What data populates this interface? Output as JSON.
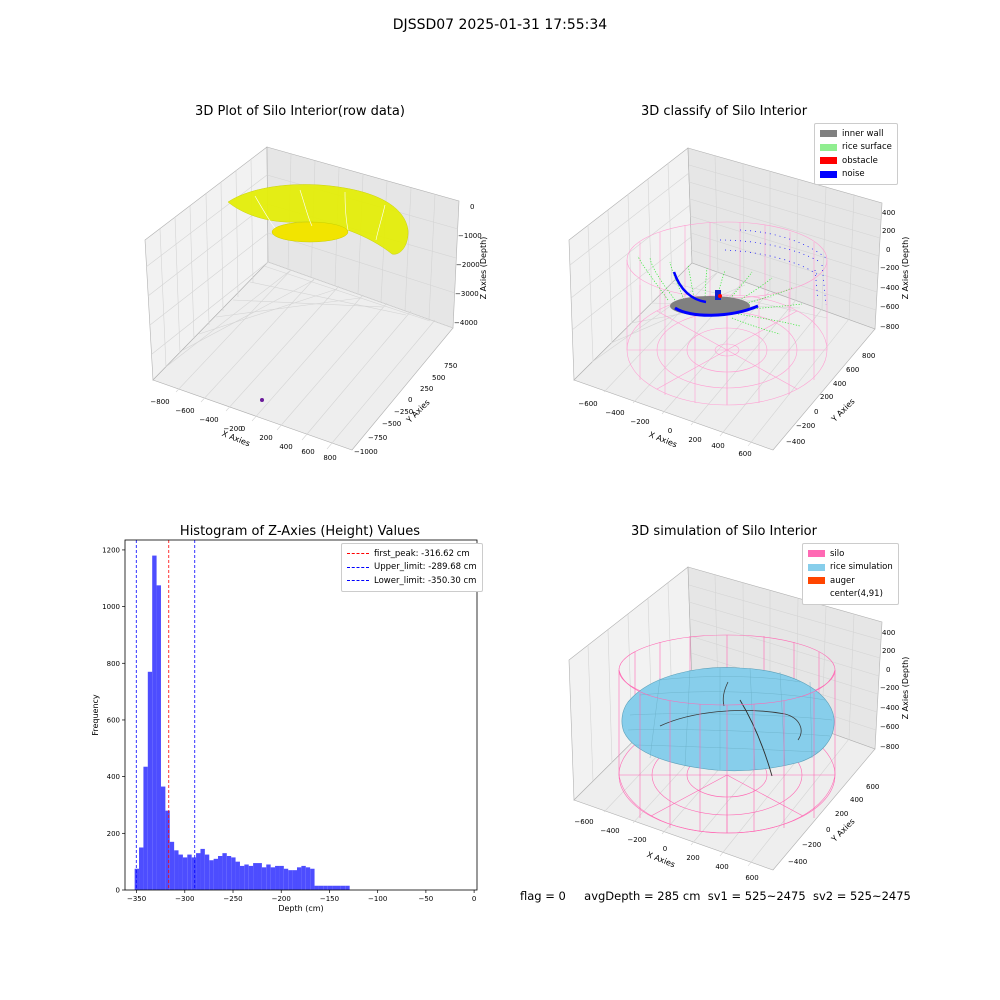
{
  "figure": {
    "suptitle": "DJSSD07 2025-01-31 17:55:34"
  },
  "footer": {
    "flag": "flag = 0",
    "avg_depth": "avgDepth = 285 cm",
    "sv1": "sv1 = 525~2475",
    "sv2": "sv2 = 525~2475"
  },
  "colors": {
    "raw_points": "#e4ee0a",
    "inner_wall": "#808080",
    "rice_surface": "#90ee90",
    "obstacle": "#ff0000",
    "noise": "#0000ff",
    "silo": "#ff69b4",
    "rice_simulation": "#87ceeb",
    "auger": "#ff4500",
    "hist_bar": "#4d4dff",
    "peak_line": "#ff0000",
    "limit_line": "#0000ff"
  },
  "chart_data": [
    {
      "type": "scatter",
      "projection": "3d",
      "title": "3D Plot of Silo Interior(row data)",
      "xlabel": "X Axies",
      "ylabel": "Y Axies",
      "zlabel": "Z Axies (Depth)",
      "xticks": [
        "−800",
        "−600",
        "−400",
        "−200",
        "0",
        "200",
        "400",
        "600",
        "800"
      ],
      "yticks": [
        "750",
        "500",
        "250",
        "0",
        "−250",
        "−500",
        "−750",
        "−1000"
      ],
      "zticks": [
        "0",
        "−1000",
        "−2000",
        "−3000",
        "−4000"
      ],
      "xlim": [
        -800,
        800
      ],
      "ylim": [
        -1000,
        750
      ],
      "zlim": [
        -4000,
        0
      ]
    },
    {
      "type": "scatter",
      "projection": "3d",
      "title": "3D classify of Silo Interior",
      "xlabel": "X Axies",
      "ylabel": "Y Axies",
      "zlabel": "Z Axies (Depth)",
      "xticks": [
        "−600",
        "−400",
        "−200",
        "0",
        "200",
        "400",
        "600"
      ],
      "yticks": [
        "800",
        "600",
        "400",
        "200",
        "0",
        "−200",
        "−400"
      ],
      "zticks": [
        "400",
        "200",
        "0",
        "−200",
        "−400",
        "−600",
        "−800"
      ],
      "legend": [
        "inner wall",
        "rice surface",
        "obstacle",
        "noise"
      ],
      "legend_position": "top-right"
    },
    {
      "type": "bar",
      "title": "Histogram of Z-Axies (Height) Values",
      "xlabel": "Depth (cm)",
      "ylabel": "Frequency",
      "xlim": [
        -362,
        3
      ],
      "ylim": [
        0,
        1235
      ],
      "xticks": [
        -350,
        -300,
        -250,
        -200,
        -150,
        -100,
        -50,
        0
      ],
      "xtick_labels": [
        "−350",
        "−300",
        "−250",
        "−200",
        "−150",
        "−100",
        "−50",
        "0"
      ],
      "yticks": [
        0,
        200,
        400,
        600,
        800,
        1000,
        1200
      ],
      "ytick_labels": [
        "0",
        "200",
        "400",
        "600",
        "800",
        "1000",
        "1200"
      ],
      "bin_start": -352,
      "bin_width": 4.55,
      "frequencies": [
        75,
        150,
        435,
        770,
        1180,
        1075,
        365,
        280,
        170,
        140,
        125,
        115,
        125,
        115,
        130,
        145,
        125,
        105,
        110,
        120,
        130,
        120,
        115,
        100,
        85,
        90,
        85,
        95,
        95,
        80,
        90,
        80,
        85,
        85,
        75,
        70,
        70,
        80,
        85,
        80,
        75,
        15,
        15,
        15,
        15,
        15,
        15,
        15,
        15
      ],
      "lines": [
        {
          "label": "first_peak: -316.62 cm",
          "x": -316.62,
          "color": "#ff0000"
        },
        {
          "label": "Upper_limit: -289.68 cm",
          "x": -289.68,
          "color": "#0000ff"
        },
        {
          "label": "Lower_limit: -350.30 cm",
          "x": -350.3,
          "color": "#0000ff"
        }
      ],
      "legend_position": "top-right"
    },
    {
      "type": "surface",
      "projection": "3d",
      "title": "3D simulation of Silo Interior",
      "xlabel": "X Axies",
      "ylabel": "Y Axies",
      "zlabel": "Z Axies (Depth)",
      "xticks": [
        "−600",
        "−400",
        "−200",
        "0",
        "200",
        "400",
        "600"
      ],
      "yticks": [
        "600",
        "400",
        "200",
        "0",
        "−200",
        "−400"
      ],
      "zticks": [
        "400",
        "200",
        "0",
        "−200",
        "−400",
        "−600",
        "−800"
      ],
      "legend": [
        "silo",
        "rice simulation",
        "auger",
        "center(4,91)"
      ],
      "legend_position": "top-right"
    }
  ]
}
